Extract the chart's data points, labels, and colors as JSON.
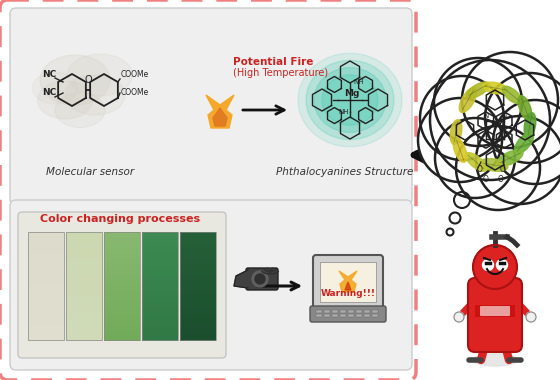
{
  "bg_color": "#ffffff",
  "outer_border_color": "#f08080",
  "color_bars": [
    [
      "#e8e4d0",
      "#e0dcc0"
    ],
    [
      "#d8deb8",
      "#c8d4a0"
    ],
    [
      "#aac890",
      "#88b870"
    ],
    [
      "#4a9a60",
      "#3a8850"
    ],
    [
      "#2d7845",
      "#1e6035"
    ]
  ],
  "bar_label": "Color changing processes",
  "mol_sensor_label": "Molecular sensor",
  "phthal_label": "Phthalocyanines Structure",
  "fire_text1": "Potential Fire",
  "fire_text2": "(High Temperature)",
  "warning_text": "Warning!!!",
  "arrow_color": "#111111",
  "red_color": "#cc2222",
  "label_color": "#333333",
  "teal_color": "#1a7060",
  "panel_bg": "#efefef",
  "panel_border": "#cccccc"
}
